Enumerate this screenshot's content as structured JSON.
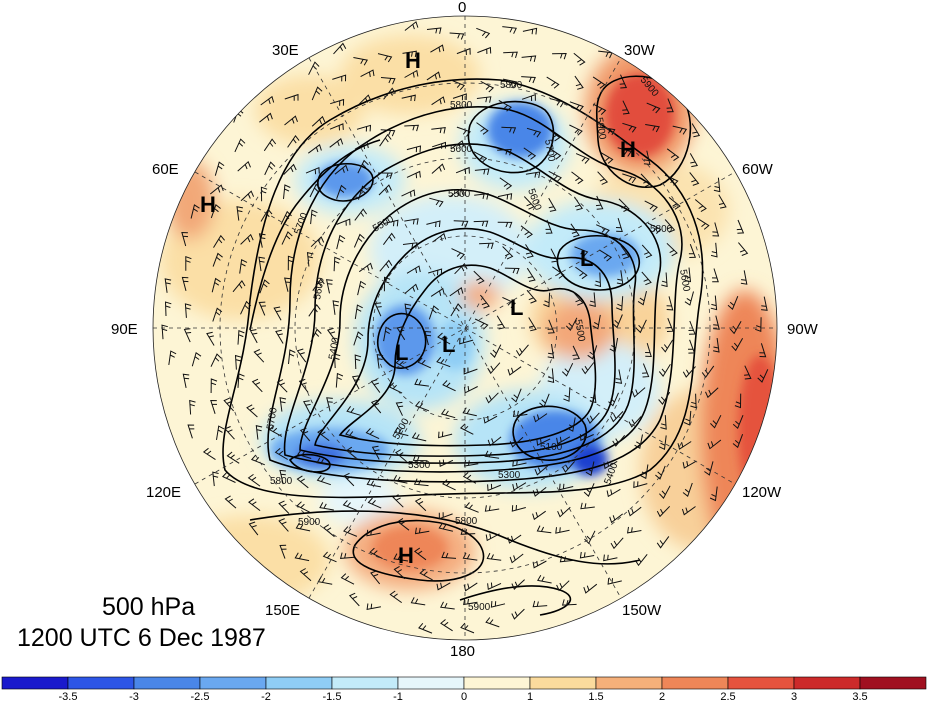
{
  "map": {
    "title_level": "500 hPa",
    "title_time": "1200 UTC 6 Dec 1987",
    "projection": "north-polar-stereographic",
    "longitude_labels": [
      {
        "text": "0",
        "lon": 0
      },
      {
        "text": "30W",
        "lon": -30
      },
      {
        "text": "60W",
        "lon": -60
      },
      {
        "text": "90W",
        "lon": -90
      },
      {
        "text": "120W",
        "lon": -120
      },
      {
        "text": "150W",
        "lon": -150
      },
      {
        "text": "180",
        "lon": 180
      },
      {
        "text": "150E",
        "lon": 150
      },
      {
        "text": "120E",
        "lon": 120
      },
      {
        "text": "90E",
        "lon": 90
      },
      {
        "text": "60E",
        "lon": 60
      },
      {
        "text": "30E",
        "lon": 30
      }
    ],
    "pressure_centers": [
      {
        "type": "H",
        "region": "north-atlantic-scandinavia"
      },
      {
        "type": "H",
        "region": "eastern-atlantic"
      },
      {
        "type": "H",
        "region": "caspian"
      },
      {
        "type": "H",
        "region": "north-pacific"
      },
      {
        "type": "L",
        "region": "siberia"
      },
      {
        "type": "L",
        "region": "east-siberian-sea"
      },
      {
        "type": "L",
        "region": "canadian-arctic"
      },
      {
        "type": "L",
        "region": "greenland-west"
      }
    ],
    "contour_labels": [
      "5800",
      "5900",
      "5800",
      "5700",
      "5600",
      "5500",
      "5900",
      "5800",
      "5600",
      "5700",
      "5500",
      "5600",
      "5400",
      "5700",
      "5300",
      "5200",
      "5100",
      "5300",
      "5400",
      "5800",
      "5900",
      "5800",
      "5600",
      "5500",
      "5900"
    ],
    "contour_levels_gpm": [
      5100,
      5200,
      5300,
      5400,
      5500,
      5600,
      5700,
      5800,
      5900
    ]
  },
  "colorbar": {
    "ticks": [
      "-3.5",
      "-3",
      "-2.5",
      "-2",
      "-1.5",
      "-1",
      "0",
      "1",
      "1.5",
      "2",
      "2.5",
      "3",
      "3.5"
    ],
    "colors": [
      "#1a1acc",
      "#2d55e6",
      "#4a86e8",
      "#6aa8f0",
      "#8fcdf5",
      "#c3ebf9",
      "#e6f6fb",
      "#fdf5d5",
      "#fbdb9d",
      "#f5b07a",
      "#ee8658",
      "#e5533e",
      "#cc2a2a",
      "#a01020"
    ]
  }
}
